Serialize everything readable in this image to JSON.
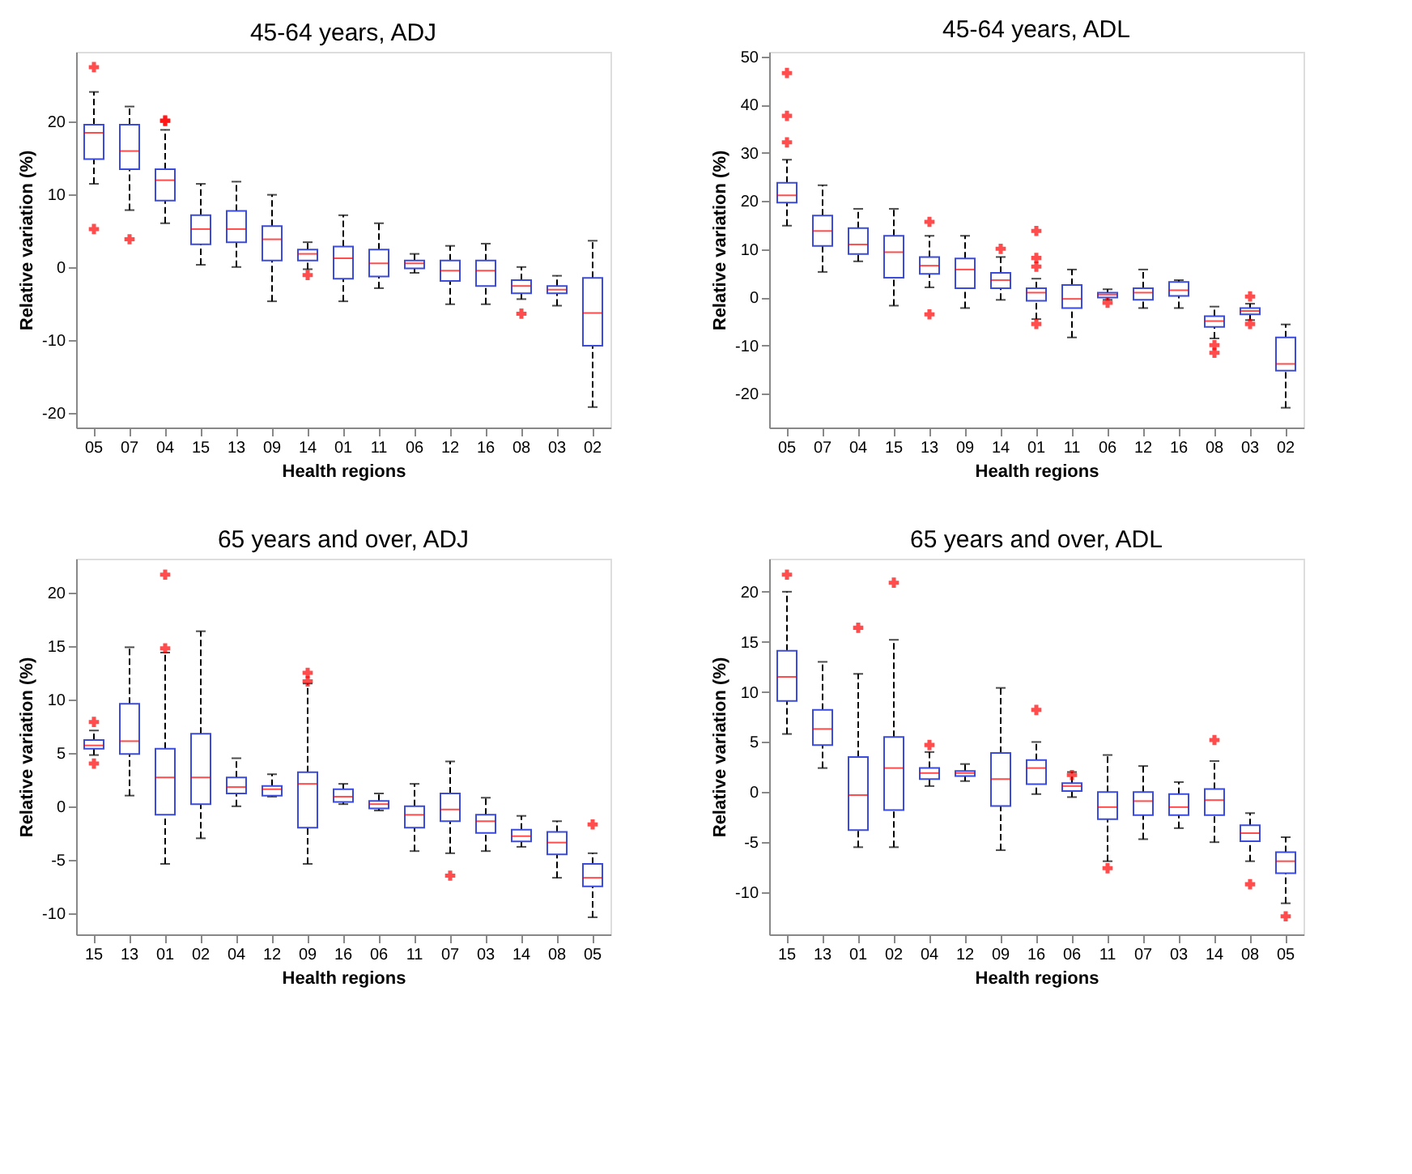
{
  "chart_data": [
    {
      "type": "box",
      "title": "45-64 years, ADJ",
      "xlabel": "Health regions",
      "ylabel": "Relative variation (%)",
      "categories": [
        "05",
        "07",
        "04",
        "15",
        "13",
        "09",
        "14",
        "01",
        "11",
        "06",
        "12",
        "16",
        "08",
        "03",
        "02"
      ],
      "ylim": [
        -22,
        29.5
      ],
      "yticks": [
        -20,
        -10,
        0,
        10,
        20
      ],
      "grid": false,
      "marker": "cross",
      "series": [
        {
          "color": "#3b4bdc",
          "boxes": [
            {
              "low": 11.4,
              "q1": 14.8,
              "median": 18.4,
              "q3": 19.5,
              "high": 24,
              "outliers": [
                27.4,
                5.2
              ]
            },
            {
              "low": 7.8,
              "q1": 13.4,
              "median": 15.9,
              "q3": 19.5,
              "high": 22,
              "outliers": [
                3.8
              ]
            },
            {
              "low": 6,
              "q1": 9.1,
              "median": 11.9,
              "q3": 13.4,
              "high": 18.8,
              "outliers": [
                20.1,
                20
              ]
            },
            {
              "low": 0.3,
              "q1": 3.1,
              "median": 5.2,
              "q3": 7.1,
              "high": 11.4
            },
            {
              "low": 0,
              "q1": 3.4,
              "median": 5.2,
              "q3": 7.7,
              "high": 11.7
            },
            {
              "low": -4.7,
              "q1": 0.9,
              "median": 3.8,
              "q3": 5.6,
              "high": 9.9
            },
            {
              "low": -0.3,
              "q1": 0.9,
              "median": 1.8,
              "q3": 2.4,
              "high": 3.4,
              "outliers": [
                -1.1
              ]
            },
            {
              "low": -4.7,
              "q1": -1.6,
              "median": 1.2,
              "q3": 2.8,
              "high": 7.1
            },
            {
              "low": -2.9,
              "q1": -1.3,
              "median": 0.5,
              "q3": 2.4,
              "high": 6
            },
            {
              "low": -0.8,
              "q1": -0.2,
              "median": 0.5,
              "q3": 0.9,
              "high": 1.8
            },
            {
              "low": -5.1,
              "q1": -1.9,
              "median": -0.5,
              "q3": 0.9,
              "high": 2.9
            },
            {
              "low": -5.1,
              "q1": -2.6,
              "median": -0.5,
              "q3": 0.9,
              "high": 3.2
            },
            {
              "low": -4.4,
              "q1": -3.6,
              "median": -2.6,
              "q3": -1.8,
              "high": 0,
              "outliers": [
                -6.4
              ]
            },
            {
              "low": -5.3,
              "q1": -3.6,
              "median": -3.1,
              "q3": -2.6,
              "high": -1.2
            },
            {
              "low": -19.2,
              "q1": -10.8,
              "median": -6.3,
              "q3": -1.5,
              "high": 3.6
            }
          ]
        }
      ]
    },
    {
      "type": "box",
      "title": "45-64 years, ADL",
      "xlabel": "Health regions",
      "ylabel": "Relative variation (%)",
      "categories": [
        "05",
        "07",
        "04",
        "15",
        "13",
        "09",
        "14",
        "01",
        "11",
        "06",
        "12",
        "16",
        "08",
        "03",
        "02"
      ],
      "ylim": [
        -27,
        51
      ],
      "yticks": [
        -20,
        -10,
        0,
        10,
        20,
        30,
        40,
        50
      ],
      "grid": false,
      "marker": "cross",
      "series": [
        {
          "color": "#3b4bdc",
          "boxes": [
            {
              "low": 14.9,
              "q1": 19.7,
              "median": 21.2,
              "q3": 23.8,
              "high": 28.6,
              "outliers": [
                46.6,
                37.7,
                32.2
              ]
            },
            {
              "low": 5.3,
              "q1": 10.7,
              "median": 13.8,
              "q3": 17,
              "high": 23.3
            },
            {
              "low": 7.5,
              "q1": 9,
              "median": 11,
              "q3": 14.4,
              "high": 18.4
            },
            {
              "low": -1.7,
              "q1": 4.1,
              "median": 9.4,
              "q3": 12.8,
              "high": 18.4
            },
            {
              "low": 2.1,
              "q1": 4.9,
              "median": 6.6,
              "q3": 8.4,
              "high": 12.8,
              "outliers": [
                15.7,
                -3.5
              ]
            },
            {
              "low": -2.2,
              "q1": 1.9,
              "median": 5.8,
              "q3": 8.1,
              "high": 12.8
            },
            {
              "low": -0.5,
              "q1": 1.9,
              "median": 3.6,
              "q3": 5.1,
              "high": 8.4,
              "outliers": [
                10.1
              ]
            },
            {
              "low": -4.5,
              "q1": -0.7,
              "median": 1,
              "q3": 1.9,
              "high": 3.9,
              "outliers": [
                13.8,
                8.2,
                6.4,
                -5.5
              ]
            },
            {
              "low": -8.3,
              "q1": -2.2,
              "median": -0.3,
              "q3": 2.6,
              "high": 5.8
            },
            {
              "low": -0.5,
              "q1": 0,
              "median": 0.6,
              "q3": 1,
              "high": 1.7,
              "outliers": [
                -1.1
              ]
            },
            {
              "low": -2.2,
              "q1": -0.5,
              "median": 1,
              "q3": 1.9,
              "high": 5.8
            },
            {
              "low": -2.2,
              "q1": 0.3,
              "median": 1.5,
              "q3": 3.2,
              "high": 3.6
            },
            {
              "low": -8.5,
              "q1": -6.1,
              "median": -4.9,
              "q3": -3.9,
              "high": -1.9,
              "outliers": [
                -9.9,
                -11.5
              ]
            },
            {
              "low": -4.7,
              "q1": -3.5,
              "median": -2.8,
              "q3": -2.2,
              "high": -1.3,
              "outliers": [
                0.2,
                -5.5
              ]
            },
            {
              "low": -22.9,
              "q1": -15.2,
              "median": -13.8,
              "q3": -8.3,
              "high": -5.6
            }
          ]
        }
      ]
    },
    {
      "type": "box",
      "title": "65 years and over, ADJ",
      "xlabel": "Health regions",
      "ylabel": "Relative variation (%)",
      "categories": [
        "15",
        "13",
        "01",
        "02",
        "04",
        "12",
        "09",
        "16",
        "06",
        "11",
        "07",
        "03",
        "14",
        "08",
        "05"
      ],
      "ylim": [
        -12,
        23.2
      ],
      "yticks": [
        -10,
        -5,
        0,
        5,
        10,
        15,
        20
      ],
      "grid": false,
      "marker": "cross",
      "series": [
        {
          "color": "#3b4bdc",
          "boxes": [
            {
              "low": 4.8,
              "q1": 5.4,
              "median": 5.7,
              "q3": 6.2,
              "high": 7.1,
              "outliers": [
                7.9,
                4.0
              ]
            },
            {
              "low": 1.0,
              "q1": 4.9,
              "median": 6.1,
              "q3": 9.6,
              "high": 14.9
            },
            {
              "low": -5.4,
              "q1": -0.8,
              "median": 2.7,
              "q3": 5.4,
              "high": 14.4,
              "outliers": [
                21.7,
                14.8
              ]
            },
            {
              "low": -3.0,
              "q1": 0.2,
              "median": 2.7,
              "q3": 6.8,
              "high": 16.4
            },
            {
              "low": 0,
              "q1": 1.2,
              "median": 1.8,
              "q3": 2.7,
              "high": 4.5
            },
            {
              "low": 0.9,
              "q1": 1.0,
              "median": 1.6,
              "q3": 1.9,
              "high": 3.0
            },
            {
              "low": -5.4,
              "q1": -2.0,
              "median": 2.1,
              "q3": 3.2,
              "high": 11.5,
              "outliers": [
                12.5,
                11.7
              ]
            },
            {
              "low": 0.2,
              "q1": 0.4,
              "median": 0.9,
              "q3": 1.6,
              "high": 2.1
            },
            {
              "low": -0.4,
              "q1": -0.2,
              "median": 0.2,
              "q3": 0.5,
              "high": 1.2
            },
            {
              "low": -4.2,
              "q1": -2.0,
              "median": -0.8,
              "q3": 0,
              "high": 2.1
            },
            {
              "low": -4.4,
              "q1": -1.4,
              "median": -0.3,
              "q3": 1.2,
              "high": 4.2,
              "outliers": [
                -6.5
              ]
            },
            {
              "low": -4.2,
              "q1": -2.5,
              "median": -1.4,
              "q3": -0.8,
              "high": 0.8
            },
            {
              "low": -3.8,
              "q1": -3.3,
              "median": -2.8,
              "q3": -2.2,
              "high": -0.9
            },
            {
              "low": -6.7,
              "q1": -4.5,
              "median": -3.4,
              "q3": -2.4,
              "high": -1.4
            },
            {
              "low": -10.4,
              "q1": -7.5,
              "median": -6.7,
              "q3": -5.4,
              "high": -4.4,
              "outliers": [
                -1.7
              ]
            }
          ]
        }
      ]
    },
    {
      "type": "box",
      "title": "65 years and over, ADL",
      "xlabel": "Health regions",
      "ylabel": "Relative variation (%)",
      "categories": [
        "15",
        "13",
        "01",
        "02",
        "04",
        "12",
        "09",
        "16",
        "06",
        "11",
        "07",
        "03",
        "14",
        "08",
        "05"
      ],
      "ylim": [
        -14.2,
        23.3
      ],
      "yticks": [
        -10,
        -5,
        0,
        5,
        10,
        15,
        20
      ],
      "grid": false,
      "marker": "cross",
      "series": [
        {
          "color": "#3b4bdc",
          "boxes": [
            {
              "low": 5.8,
              "q1": 9.1,
              "median": 11.5,
              "q3": 14.1,
              "high": 20,
              "outliers": [
                21.7
              ]
            },
            {
              "low": 2.4,
              "q1": 4.7,
              "median": 6.3,
              "q3": 8.2,
              "high": 13
            },
            {
              "low": -5.5,
              "q1": -3.8,
              "median": -0.3,
              "q3": 3.5,
              "high": 11.8,
              "outliers": [
                16.4
              ]
            },
            {
              "low": -5.5,
              "q1": -1.8,
              "median": 2.4,
              "q3": 5.5,
              "high": 15.2,
              "outliers": [
                20.9
              ]
            },
            {
              "low": 0.6,
              "q1": 1.3,
              "median": 1.9,
              "q3": 2.4,
              "high": 4.0,
              "outliers": [
                4.7
              ]
            },
            {
              "low": 1.1,
              "q1": 1.6,
              "median": 1.9,
              "q3": 2.1,
              "high": 2.8
            },
            {
              "low": -5.8,
              "q1": -1.4,
              "median": 1.3,
              "q3": 3.9,
              "high": 10.4
            },
            {
              "low": -0.2,
              "q1": 0.8,
              "median": 2.4,
              "q3": 3.2,
              "high": 5.0,
              "outliers": [
                8.2
              ]
            },
            {
              "low": -0.5,
              "q1": 0.1,
              "median": 0.6,
              "q3": 0.9,
              "high": 2.0,
              "outliers": [
                1.7
              ]
            },
            {
              "low": -6.9,
              "q1": -2.7,
              "median": -1.5,
              "q3": 0,
              "high": 3.7,
              "outliers": [
                -7.6
              ]
            },
            {
              "low": -4.7,
              "q1": -2.3,
              "median": -0.9,
              "q3": 0,
              "high": 2.6
            },
            {
              "low": -3.6,
              "q1": -2.3,
              "median": -1.5,
              "q3": -0.2,
              "high": 1.0
            },
            {
              "low": -5.0,
              "q1": -2.3,
              "median": -0.8,
              "q3": 0.3,
              "high": 3.1,
              "outliers": [
                5.2
              ]
            },
            {
              "low": -6.9,
              "q1": -4.9,
              "median": -4.1,
              "q3": -3.3,
              "high": -2.1,
              "outliers": [
                -9.2
              ]
            },
            {
              "low": -11.1,
              "q1": -8.1,
              "median": -6.9,
              "q3": -6.0,
              "high": -4.5,
              "outliers": [
                -12.4
              ]
            }
          ]
        }
      ]
    }
  ]
}
